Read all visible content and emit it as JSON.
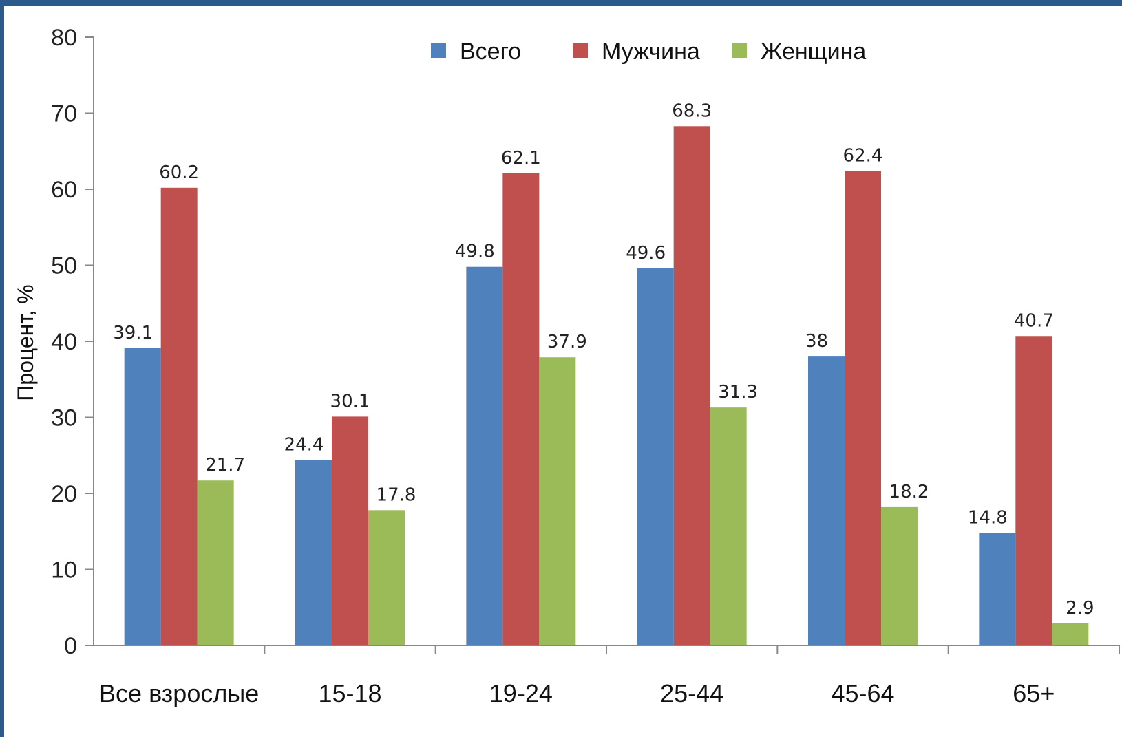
{
  "chart_data": {
    "type": "bar",
    "ylabel": "Процент, %",
    "ylim": [
      0,
      80
    ],
    "yticks": [
      "0",
      "10",
      "20",
      "30",
      "40",
      "50",
      "60",
      "70",
      "80"
    ],
    "categories": [
      "Все взрослые",
      "15-18",
      "19-24",
      "25-44",
      "45-64",
      "65+"
    ],
    "legend_position": "top",
    "series": [
      {
        "name": "Всего",
        "color": "#4f81bd",
        "values": [
          39.1,
          24.4,
          49.8,
          49.6,
          38,
          14.8
        ],
        "labels": [
          "39.1",
          "24.4",
          "49.8",
          "49.6",
          "38",
          "14.8"
        ]
      },
      {
        "name": "Мужчина",
        "color": "#c0504d",
        "values": [
          60.2,
          30.1,
          62.1,
          68.3,
          62.4,
          40.7
        ],
        "labels": [
          "60.2",
          "30.1",
          "62.1",
          "68.3",
          "62.4",
          "40.7"
        ]
      },
      {
        "name": "Женщина",
        "color": "#9bbb59",
        "values": [
          21.7,
          17.8,
          37.9,
          31.3,
          18.2,
          2.9
        ],
        "labels": [
          "21.7",
          "17.8",
          "37.9",
          "31.3",
          "18.2",
          "2.9"
        ]
      }
    ]
  }
}
